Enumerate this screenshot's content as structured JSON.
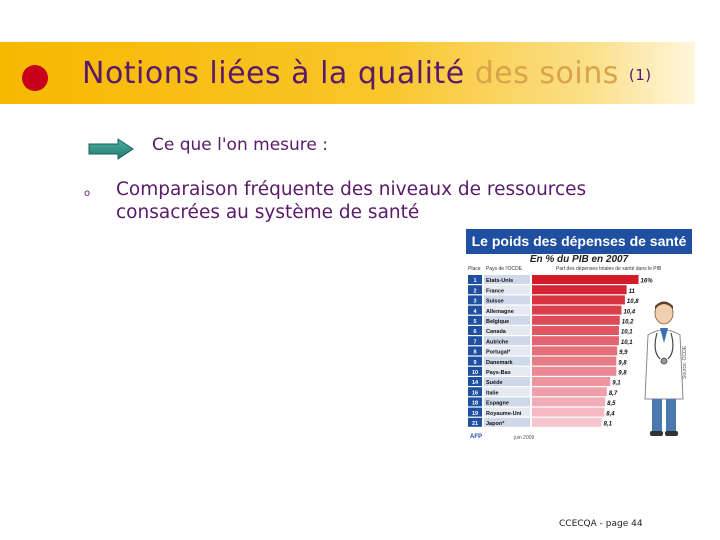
{
  "title": {
    "main": "Notions liées à la qualité ",
    "tail": "des soins",
    "suffix": "(1)"
  },
  "subtitle": "Ce que l'on mesure :",
  "bullet": {
    "marker": "o",
    "text": "Comparaison fréquente des niveaux de ressources consacrées au système de santé"
  },
  "infobox": {
    "header": "Le poids des dépenses de santé",
    "subheader": "En % du PIB en 2007",
    "col_place": "Place",
    "col_country": "Pays de l'OCDE",
    "col_value": "Part des dépenses totales de santé dans le PIB",
    "source": "Source: OCDE",
    "foot_left": "AFP",
    "foot_right": "juin 2009"
  },
  "chart_data": {
    "type": "bar",
    "title": "Le poids des dépenses de santé",
    "subtitle": "En % du PIB en 2007",
    "places": [
      "1",
      "2",
      "3",
      "4",
      "5",
      "6",
      "7",
      "8",
      "9",
      "10",
      "14",
      "16",
      "18",
      "19",
      "21"
    ],
    "categories": [
      "Etats-Unis",
      "France",
      "Suisse",
      "Allemagne",
      "Belgique",
      "Canada",
      "Autriche",
      "Portugal*",
      "Danemark",
      "Pays-Bas",
      "Suède",
      "Italie",
      "Espagne",
      "Royaume-Uni",
      "Japon*"
    ],
    "values": [
      16,
      11,
      10.8,
      10.4,
      10.2,
      10.1,
      10.1,
      9.9,
      9.8,
      9.8,
      9.1,
      8.7,
      8.5,
      8.4,
      8.1
    ],
    "value_labels": [
      "16%",
      "11",
      "10,8",
      "10,4",
      "10,2",
      "10,1",
      "10,1",
      "9,9",
      "9,8",
      "9,8",
      "9,1",
      "8,7",
      "8,5",
      "8,4",
      "8,1"
    ],
    "bar_color_top": "#d41a28",
    "bar_color_bottom": "#f6c5cf"
  },
  "footer": "CCECQA - page 44"
}
